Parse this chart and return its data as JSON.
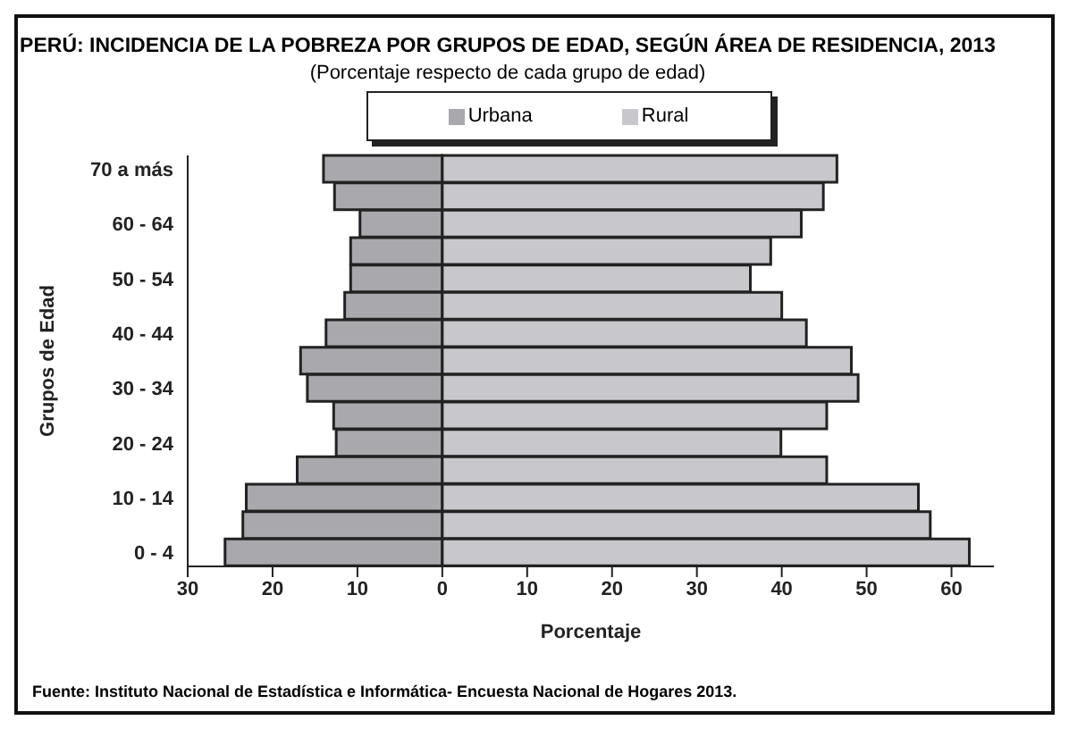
{
  "chart_data": {
    "type": "bar",
    "orientation": "horizontal",
    "stacked": true,
    "title": "PERÚ: INCIDENCIA DE LA POBREZA POR GRUPOS DE EDAD, SEGÚN ÁREA DE RESIDENCIA, 2013",
    "subtitle": "(Porcentaje respecto de cada grupo de edad)",
    "xlabel": "Porcentaje",
    "ylabel": "Grupos de Edad",
    "categories": [
      "70  a más",
      null,
      "60 - 64",
      null,
      "50 - 54",
      null,
      "40 - 44",
      null,
      "30 - 34",
      null,
      "20 - 24",
      null,
      "10 - 14",
      null,
      "0 - 4"
    ],
    "series": [
      {
        "name": "Urbana",
        "color": "#a9a9ad",
        "values": [
          -14.0,
          -12.7,
          -9.7,
          -10.8,
          -10.8,
          -11.5,
          -13.7,
          -16.7,
          -15.9,
          -12.8,
          -12.5,
          -17.1,
          -23.1,
          -23.5,
          -25.6
        ]
      },
      {
        "name": "Rural",
        "color": "#c8c8cc",
        "values": [
          46.5,
          44.9,
          42.3,
          38.7,
          36.3,
          40.0,
          42.9,
          48.2,
          49.0,
          45.3,
          39.9,
          45.3,
          56.1,
          57.5,
          62.1
        ]
      }
    ],
    "xlim": [
      -30,
      65
    ],
    "xticks": [
      {
        "value": -30,
        "label": "30"
      },
      {
        "value": -20,
        "label": "20"
      },
      {
        "value": -10,
        "label": "10"
      },
      0,
      10,
      20,
      30,
      40,
      50,
      60
    ],
    "grid": false,
    "legend": "top",
    "annotations": [
      "Fuente: Instituto Nacional de Estadística e Informática- Encuesta Nacional de Hogares 2013."
    ]
  }
}
